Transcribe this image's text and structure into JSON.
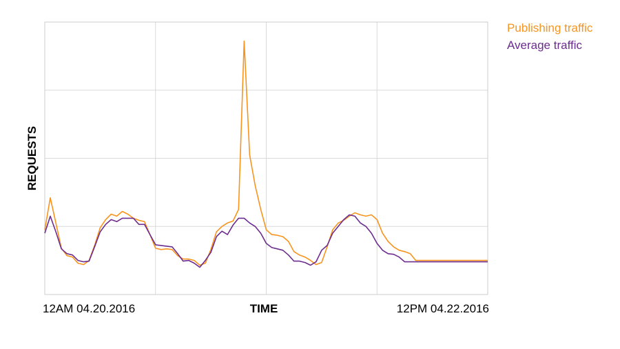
{
  "chart_data": {
    "type": "line",
    "title": "",
    "xlabel": "TIME",
    "ylabel": "REQUESTS",
    "x_tick_labels": {
      "start": "12AM 04.20.2016",
      "end": "12PM 04.22.2016"
    },
    "x": [
      0,
      1,
      2,
      3,
      4,
      5,
      6,
      7,
      8,
      9,
      10,
      11,
      12,
      13,
      14,
      15,
      16,
      17,
      18,
      19,
      20,
      21,
      22,
      23,
      24,
      25,
      26,
      27,
      28,
      29,
      30,
      31,
      32,
      33,
      34,
      35,
      36,
      37,
      38,
      39,
      40,
      41,
      42,
      43,
      44,
      45,
      46,
      47,
      48,
      49,
      50,
      51,
      52,
      53,
      54,
      55,
      56,
      57,
      58,
      59,
      60,
      61,
      62,
      63,
      64,
      65,
      66,
      67,
      68,
      69,
      70,
      71,
      72,
      73,
      74,
      75,
      76,
      77,
      78,
      79,
      80
    ],
    "ylim": [
      0,
      4
    ],
    "grid": true,
    "legend_position": "top-right",
    "series": [
      {
        "name": "Publishing traffic",
        "color": "#f7941d",
        "values": [
          0.95,
          1.42,
          1.05,
          0.68,
          0.57,
          0.55,
          0.46,
          0.44,
          0.5,
          0.72,
          0.98,
          1.1,
          1.18,
          1.15,
          1.22,
          1.18,
          1.12,
          1.09,
          1.07,
          0.88,
          0.68,
          0.66,
          0.67,
          0.66,
          0.57,
          0.52,
          0.52,
          0.5,
          0.43,
          0.46,
          0.66,
          0.92,
          1.0,
          1.05,
          1.08,
          1.25,
          3.72,
          2.05,
          1.6,
          1.25,
          0.95,
          0.88,
          0.87,
          0.85,
          0.78,
          0.63,
          0.58,
          0.55,
          0.5,
          0.44,
          0.47,
          0.7,
          0.95,
          1.05,
          1.09,
          1.15,
          1.2,
          1.17,
          1.15,
          1.17,
          1.1,
          0.9,
          0.78,
          0.7,
          0.65,
          0.63,
          0.6,
          0.5,
          0.5,
          0.5,
          0.5,
          0.5,
          0.5,
          0.5,
          0.5,
          0.5,
          0.5,
          0.5,
          0.5,
          0.5,
          0.5
        ]
      },
      {
        "name": "Average traffic",
        "color": "#6b2c8f",
        "values": [
          0.9,
          1.15,
          0.92,
          0.67,
          0.6,
          0.58,
          0.5,
          0.48,
          0.49,
          0.7,
          0.92,
          1.03,
          1.1,
          1.07,
          1.12,
          1.12,
          1.12,
          1.03,
          1.03,
          0.88,
          0.73,
          0.72,
          0.71,
          0.7,
          0.6,
          0.49,
          0.5,
          0.46,
          0.4,
          0.5,
          0.62,
          0.85,
          0.93,
          0.88,
          1.02,
          1.12,
          1.12,
          1.05,
          1.0,
          0.9,
          0.75,
          0.69,
          0.67,
          0.65,
          0.58,
          0.49,
          0.49,
          0.47,
          0.43,
          0.48,
          0.65,
          0.72,
          0.9,
          1.0,
          1.1,
          1.17,
          1.15,
          1.05,
          1.0,
          0.9,
          0.75,
          0.65,
          0.6,
          0.59,
          0.55,
          0.48,
          0.48,
          0.48,
          0.48,
          0.48,
          0.48,
          0.48,
          0.48,
          0.48,
          0.48,
          0.48,
          0.48,
          0.48,
          0.48,
          0.48,
          0.48
        ]
      }
    ]
  }
}
